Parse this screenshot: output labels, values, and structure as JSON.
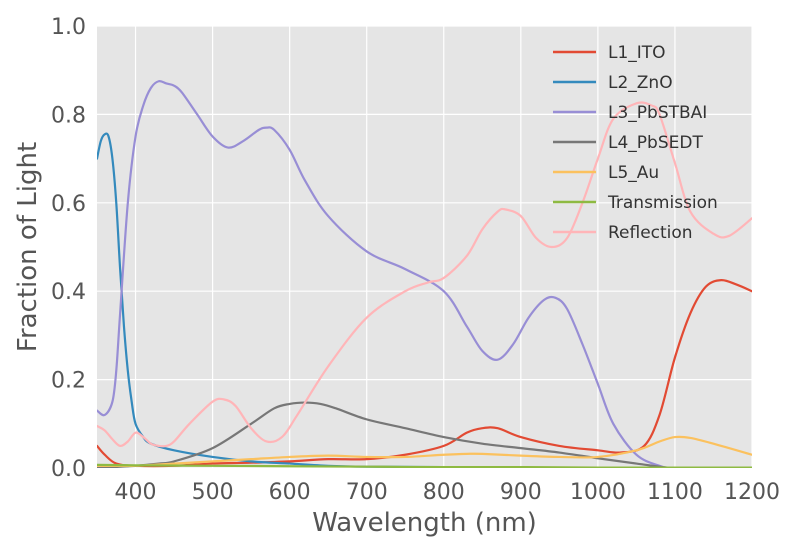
{
  "chart_data": {
    "type": "line",
    "title": "",
    "xlabel": "Wavelength (nm)",
    "ylabel": "Fraction of Light",
    "xlim": [
      350,
      1200
    ],
    "ylim": [
      0,
      1
    ],
    "xticks": [
      400,
      500,
      600,
      700,
      800,
      900,
      1000,
      1100,
      1200
    ],
    "yticks": [
      0.0,
      0.2,
      0.4,
      0.6,
      0.8,
      1.0
    ],
    "xtick_labels": [
      "400",
      "500",
      "600",
      "700",
      "800",
      "900",
      "1000",
      "1100",
      "1200"
    ],
    "ytick_labels": [
      "0.0",
      "0.2",
      "0.4",
      "0.6",
      "0.8",
      "1.0"
    ],
    "grid": true,
    "legend_position": "top-right",
    "series": [
      {
        "name": "L1_ITO",
        "color": "#E24A33",
        "x": [
          350,
          360,
          375,
          400,
          450,
          500,
          550,
          600,
          650,
          700,
          750,
          800,
          830,
          850,
          870,
          900,
          950,
          1000,
          1030,
          1060,
          1080,
          1100,
          1120,
          1140,
          1160,
          1180,
          1200
        ],
        "y": [
          0.05,
          0.03,
          0.01,
          0.005,
          0.005,
          0.01,
          0.012,
          0.015,
          0.02,
          0.02,
          0.03,
          0.05,
          0.08,
          0.09,
          0.09,
          0.07,
          0.05,
          0.04,
          0.035,
          0.05,
          0.12,
          0.25,
          0.35,
          0.41,
          0.425,
          0.415,
          0.4
        ]
      },
      {
        "name": "L2_ZnO",
        "color": "#348ABD",
        "x": [
          350,
          355,
          360,
          365,
          370,
          375,
          380,
          385,
          390,
          395,
          400,
          410,
          420,
          450,
          500,
          550,
          600,
          650,
          700,
          800,
          900,
          1000,
          1100,
          1200
        ],
        "y": [
          0.7,
          0.74,
          0.755,
          0.75,
          0.7,
          0.6,
          0.45,
          0.32,
          0.22,
          0.15,
          0.1,
          0.07,
          0.055,
          0.04,
          0.025,
          0.015,
          0.01,
          0.005,
          0.003,
          0.002,
          0.0,
          0.0,
          0.0,
          0.0
        ]
      },
      {
        "name": "L3_PbSTBAI",
        "color": "#988ED5",
        "x": [
          350,
          360,
          370,
          375,
          380,
          390,
          400,
          410,
          420,
          430,
          440,
          450,
          460,
          480,
          500,
          520,
          540,
          560,
          570,
          580,
          600,
          620,
          650,
          700,
          750,
          800,
          830,
          850,
          870,
          890,
          910,
          930,
          945,
          960,
          980,
          1000,
          1020,
          1050,
          1080,
          1100,
          1150,
          1200
        ],
        "y": [
          0.13,
          0.12,
          0.15,
          0.22,
          0.35,
          0.6,
          0.75,
          0.82,
          0.86,
          0.875,
          0.87,
          0.865,
          0.85,
          0.8,
          0.75,
          0.725,
          0.74,
          0.765,
          0.77,
          0.765,
          0.72,
          0.65,
          0.57,
          0.49,
          0.45,
          0.4,
          0.32,
          0.265,
          0.245,
          0.28,
          0.34,
          0.38,
          0.385,
          0.36,
          0.28,
          0.19,
          0.1,
          0.03,
          0.005,
          0.0,
          0.0,
          0.0
        ]
      },
      {
        "name": "L4_PbSEDT",
        "color": "#777777",
        "x": [
          350,
          400,
          430,
          450,
          500,
          550,
          580,
          600,
          620,
          640,
          660,
          700,
          750,
          800,
          850,
          900,
          950,
          1000,
          1050,
          1080,
          1100,
          1150,
          1200
        ],
        "y": [
          0.0,
          0.005,
          0.01,
          0.015,
          0.045,
          0.1,
          0.135,
          0.145,
          0.148,
          0.145,
          0.135,
          0.11,
          0.09,
          0.07,
          0.055,
          0.045,
          0.035,
          0.022,
          0.01,
          0.003,
          0.0,
          0.0,
          0.0
        ]
      },
      {
        "name": "L5_Au",
        "color": "#FBC15E",
        "x": [
          350,
          400,
          450,
          500,
          550,
          600,
          650,
          700,
          750,
          800,
          830,
          850,
          900,
          950,
          1000,
          1050,
          1080,
          1100,
          1120,
          1150,
          1200
        ],
        "y": [
          0.005,
          0.005,
          0.01,
          0.015,
          0.02,
          0.025,
          0.028,
          0.025,
          0.025,
          0.03,
          0.032,
          0.032,
          0.028,
          0.025,
          0.025,
          0.04,
          0.06,
          0.07,
          0.068,
          0.055,
          0.03
        ]
      },
      {
        "name": "Transmission",
        "color": "#8EBA42",
        "x": [
          350,
          400,
          500,
          600,
          700,
          800,
          900,
          1000,
          1100,
          1200
        ],
        "y": [
          0.007,
          0.006,
          0.005,
          0.004,
          0.003,
          0.002,
          0.002,
          0.001,
          0.001,
          0.001
        ]
      },
      {
        "name": "Reflection",
        "color": "#FFB5B8",
        "x": [
          350,
          360,
          370,
          380,
          390,
          400,
          410,
          420,
          430,
          440,
          450,
          470,
          500,
          515,
          530,
          550,
          570,
          590,
          610,
          650,
          700,
          750,
          780,
          800,
          830,
          850,
          870,
          880,
          900,
          920,
          940,
          960,
          980,
          1000,
          1020,
          1050,
          1070,
          1080,
          1100,
          1120,
          1150,
          1170,
          1200
        ],
        "y": [
          0.095,
          0.085,
          0.065,
          0.05,
          0.06,
          0.08,
          0.07,
          0.055,
          0.05,
          0.05,
          0.06,
          0.1,
          0.15,
          0.155,
          0.14,
          0.09,
          0.06,
          0.07,
          0.12,
          0.23,
          0.34,
          0.4,
          0.42,
          0.43,
          0.48,
          0.54,
          0.58,
          0.585,
          0.57,
          0.52,
          0.5,
          0.52,
          0.6,
          0.7,
          0.79,
          0.825,
          0.82,
          0.8,
          0.69,
          0.58,
          0.53,
          0.525,
          0.565
        ]
      }
    ]
  }
}
